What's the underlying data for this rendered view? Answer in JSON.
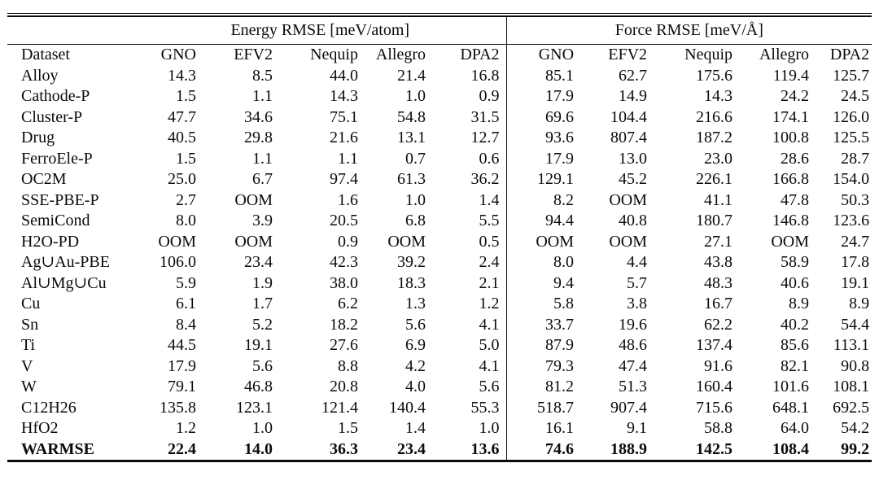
{
  "colors": {
    "background": "#ffffff",
    "text": "#0b0b0b",
    "rule": "#0b0b0b"
  },
  "table": {
    "group_headers": [
      "Energy RMSE [meV/atom]",
      "Force RMSE [meV/Å]"
    ],
    "dataset_header": "Dataset",
    "model_columns": [
      "GNO",
      "EFV2",
      "Nequip",
      "Allegro",
      "DPA2"
    ],
    "oom_label": "OOM",
    "rows": [
      {
        "dataset": "Alloy",
        "energy": [
          "14.3",
          "8.5",
          "44.0",
          "21.4",
          "16.8"
        ],
        "force": [
          "85.1",
          "62.7",
          "175.6",
          "119.4",
          "125.7"
        ],
        "bold": false
      },
      {
        "dataset": "Cathode-P",
        "energy": [
          "1.5",
          "1.1",
          "14.3",
          "1.0",
          "0.9"
        ],
        "force": [
          "17.9",
          "14.9",
          "14.3",
          "24.2",
          "24.5"
        ],
        "bold": false
      },
      {
        "dataset": "Cluster-P",
        "energy": [
          "47.7",
          "34.6",
          "75.1",
          "54.8",
          "31.5"
        ],
        "force": [
          "69.6",
          "104.4",
          "216.6",
          "174.1",
          "126.0"
        ],
        "bold": false
      },
      {
        "dataset": "Drug",
        "energy": [
          "40.5",
          "29.8",
          "21.6",
          "13.1",
          "12.7"
        ],
        "force": [
          "93.6",
          "807.4",
          "187.2",
          "100.8",
          "125.5"
        ],
        "bold": false
      },
      {
        "dataset": "FerroEle-P",
        "energy": [
          "1.5",
          "1.1",
          "1.1",
          "0.7",
          "0.6"
        ],
        "force": [
          "17.9",
          "13.0",
          "23.0",
          "28.6",
          "28.7"
        ],
        "bold": false
      },
      {
        "dataset": "OC2M",
        "energy": [
          "25.0",
          "6.7",
          "97.4",
          "61.3",
          "36.2"
        ],
        "force": [
          "129.1",
          "45.2",
          "226.1",
          "166.8",
          "154.0"
        ],
        "bold": false
      },
      {
        "dataset": "SSE-PBE-P",
        "energy": [
          "2.7",
          "OOM",
          "1.6",
          "1.0",
          "1.4"
        ],
        "force": [
          "8.2",
          "OOM",
          "41.1",
          "47.8",
          "50.3"
        ],
        "bold": false
      },
      {
        "dataset": "SemiCond",
        "energy": [
          "8.0",
          "3.9",
          "20.5",
          "6.8",
          "5.5"
        ],
        "force": [
          "94.4",
          "40.8",
          "180.7",
          "146.8",
          "123.6"
        ],
        "bold": false
      },
      {
        "dataset": "H2O-PD",
        "energy": [
          "OOM",
          "OOM",
          "0.9",
          "OOM",
          "0.5"
        ],
        "force": [
          "OOM",
          "OOM",
          "27.1",
          "OOM",
          "24.7"
        ],
        "bold": false
      },
      {
        "dataset": "Ag∪Au-PBE",
        "energy": [
          "106.0",
          "23.4",
          "42.3",
          "39.2",
          "2.4"
        ],
        "force": [
          "8.0",
          "4.4",
          "43.8",
          "58.9",
          "17.8"
        ],
        "bold": false
      },
      {
        "dataset": "Al∪Mg∪Cu",
        "energy": [
          "5.9",
          "1.9",
          "38.0",
          "18.3",
          "2.1"
        ],
        "force": [
          "9.4",
          "5.7",
          "48.3",
          "40.6",
          "19.1"
        ],
        "bold": false
      },
      {
        "dataset": "Cu",
        "energy": [
          "6.1",
          "1.7",
          "6.2",
          "1.3",
          "1.2"
        ],
        "force": [
          "5.8",
          "3.8",
          "16.7",
          "8.9",
          "8.9"
        ],
        "bold": false
      },
      {
        "dataset": "Sn",
        "energy": [
          "8.4",
          "5.2",
          "18.2",
          "5.6",
          "4.1"
        ],
        "force": [
          "33.7",
          "19.6",
          "62.2",
          "40.2",
          "54.4"
        ],
        "bold": false
      },
      {
        "dataset": "Ti",
        "energy": [
          "44.5",
          "19.1",
          "27.6",
          "6.9",
          "5.0"
        ],
        "force": [
          "87.9",
          "48.6",
          "137.4",
          "85.6",
          "113.1"
        ],
        "bold": false
      },
      {
        "dataset": "V",
        "energy": [
          "17.9",
          "5.6",
          "8.8",
          "4.2",
          "4.1"
        ],
        "force": [
          "79.3",
          "47.4",
          "91.6",
          "82.1",
          "90.8"
        ],
        "bold": false
      },
      {
        "dataset": "W",
        "energy": [
          "79.1",
          "46.8",
          "20.8",
          "4.0",
          "5.6"
        ],
        "force": [
          "81.2",
          "51.3",
          "160.4",
          "101.6",
          "108.1"
        ],
        "bold": false
      },
      {
        "dataset": "C12H26",
        "energy": [
          "135.8",
          "123.1",
          "121.4",
          "140.4",
          "55.3"
        ],
        "force": [
          "518.7",
          "907.4",
          "715.6",
          "648.1",
          "692.5"
        ],
        "bold": false
      },
      {
        "dataset": "HfO2",
        "energy": [
          "1.2",
          "1.0",
          "1.5",
          "1.4",
          "1.0"
        ],
        "force": [
          "16.1",
          "9.1",
          "58.8",
          "64.0",
          "54.2"
        ],
        "bold": false
      },
      {
        "dataset": "WARMSE",
        "energy": [
          "22.4",
          "14.0",
          "36.3",
          "23.4",
          "13.6"
        ],
        "force": [
          "74.6",
          "188.9",
          "142.5",
          "108.4",
          "99.2"
        ],
        "bold": true
      }
    ]
  }
}
